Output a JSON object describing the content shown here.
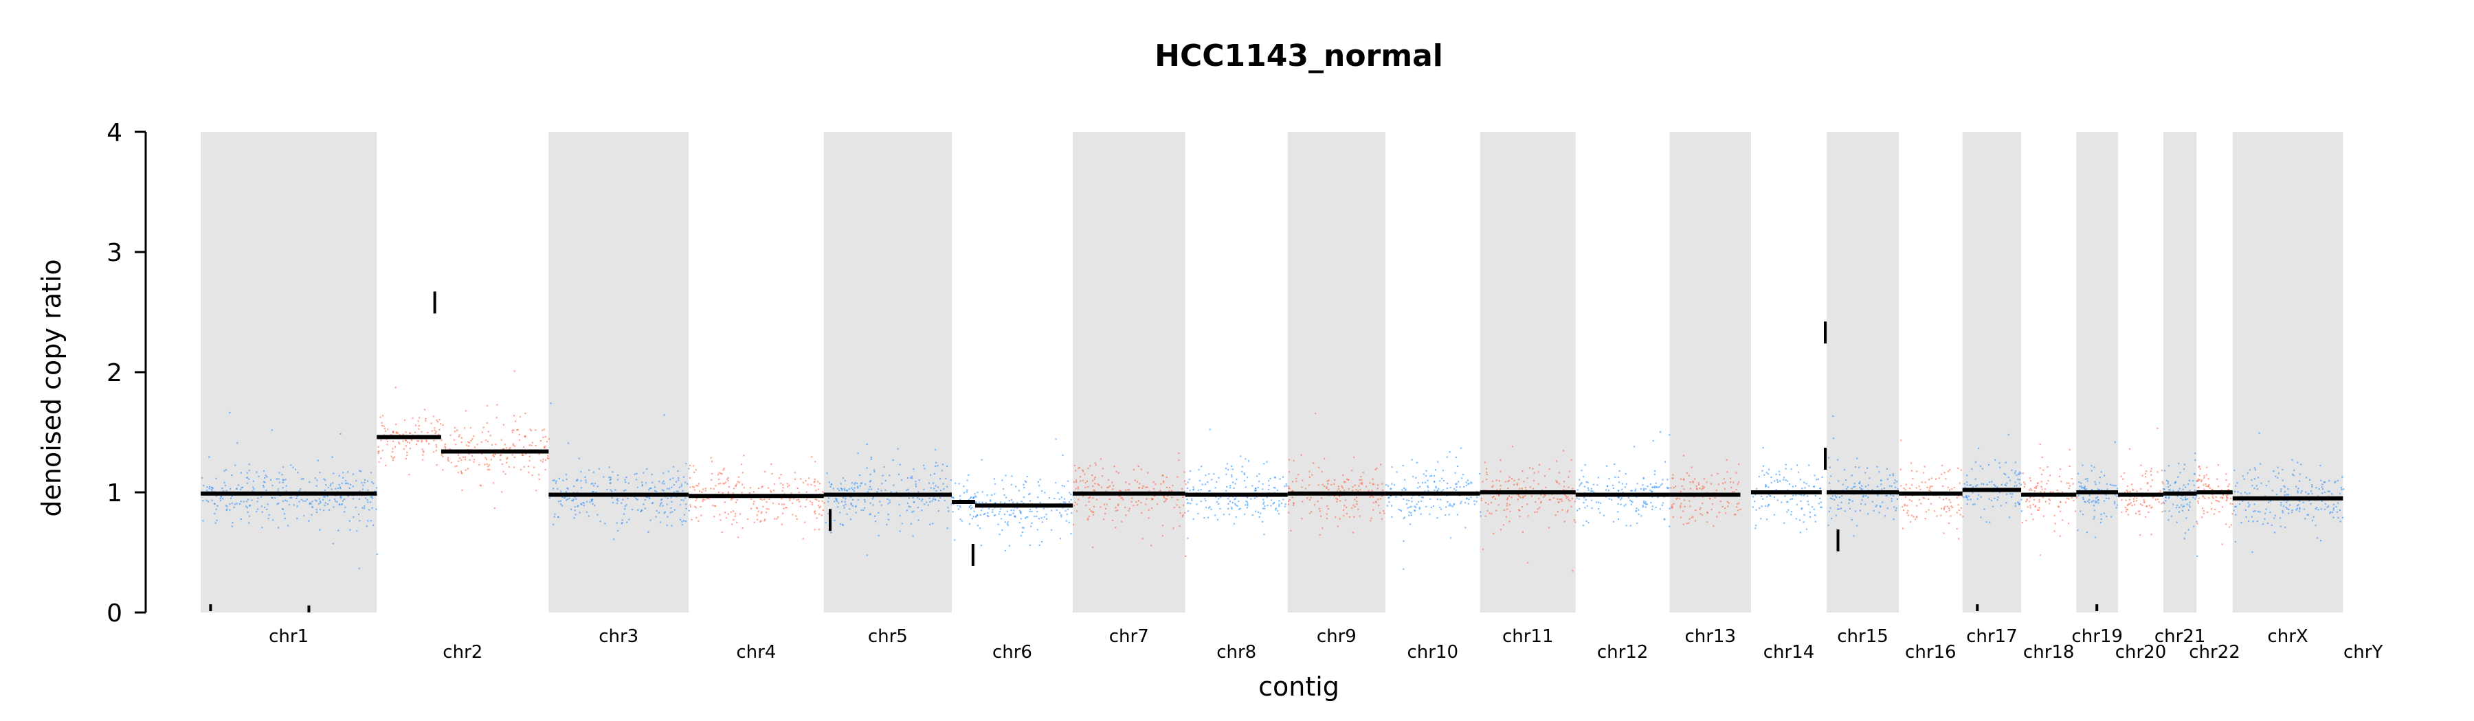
{
  "chart_data": {
    "type": "scatter",
    "title": "HCC1143_normal",
    "xlabel": "contig",
    "ylabel": "denoised copy ratio",
    "ylim": [
      0,
      4
    ],
    "yticks": [
      "0",
      "1",
      "2",
      "3",
      "4"
    ],
    "grid": false,
    "colors": {
      "point_a": "#1e88ff",
      "point_b": "#ff5a36",
      "band": "#e5e5e5",
      "segment": "#000000"
    },
    "contigs": [
      {
        "name": "chr1",
        "start": 0,
        "end": 249,
        "shaded": true,
        "color": "point_a"
      },
      {
        "name": "chr2",
        "start": 249,
        "end": 492,
        "shaded": false,
        "color": "point_b"
      },
      {
        "name": "chr3",
        "start": 492,
        "end": 690,
        "shaded": true,
        "color": "point_a"
      },
      {
        "name": "chr4",
        "start": 690,
        "end": 881,
        "shaded": false,
        "color": "point_b"
      },
      {
        "name": "chr5",
        "start": 881,
        "end": 1062,
        "shaded": true,
        "color": "point_a"
      },
      {
        "name": "chr6",
        "start": 1062,
        "end": 1233,
        "shaded": false,
        "color": "point_a"
      },
      {
        "name": "chr7",
        "start": 1233,
        "end": 1392,
        "shaded": true,
        "color": "point_b"
      },
      {
        "name": "chr8",
        "start": 1392,
        "end": 1537,
        "shaded": false,
        "color": "point_a"
      },
      {
        "name": "chr9",
        "start": 1537,
        "end": 1675,
        "shaded": true,
        "color": "point_b"
      },
      {
        "name": "chr10",
        "start": 1675,
        "end": 1809,
        "shaded": false,
        "color": "point_a"
      },
      {
        "name": "chr11",
        "start": 1809,
        "end": 1944,
        "shaded": true,
        "color": "point_b"
      },
      {
        "name": "chr12",
        "start": 1944,
        "end": 2077,
        "shaded": false,
        "color": "point_a"
      },
      {
        "name": "chr13",
        "start": 2077,
        "end": 2192,
        "shaded": true,
        "color": "point_b"
      },
      {
        "name": "chr14",
        "start": 2192,
        "end": 2299,
        "shaded": false,
        "color": "point_a"
      },
      {
        "name": "chr15",
        "start": 2299,
        "end": 2401,
        "shaded": true,
        "color": "point_a"
      },
      {
        "name": "chr16",
        "start": 2401,
        "end": 2491,
        "shaded": false,
        "color": "point_b"
      },
      {
        "name": "chr17",
        "start": 2491,
        "end": 2574,
        "shaded": true,
        "color": "point_a"
      },
      {
        "name": "chr18",
        "start": 2574,
        "end": 2652,
        "shaded": false,
        "color": "point_b"
      },
      {
        "name": "chr19",
        "start": 2652,
        "end": 2711,
        "shaded": true,
        "color": "point_a"
      },
      {
        "name": "chr20",
        "start": 2711,
        "end": 2775,
        "shaded": false,
        "color": "point_b"
      },
      {
        "name": "chr21",
        "start": 2775,
        "end": 2822,
        "shaded": true,
        "color": "point_a"
      },
      {
        "name": "chr22",
        "start": 2822,
        "end": 2873,
        "shaded": false,
        "color": "point_b"
      },
      {
        "name": "chrX",
        "start": 2873,
        "end": 3029,
        "shaded": true,
        "color": "point_a"
      },
      {
        "name": "chrY",
        "start": 3029,
        "end": 3086,
        "shaded": false,
        "color": "point_a"
      }
    ],
    "segments": [
      {
        "start": 0,
        "end": 249,
        "y": 0.99
      },
      {
        "start": 249,
        "end": 340,
        "y": 1.46
      },
      {
        "start": 340,
        "end": 492,
        "y": 1.34
      },
      {
        "start": 492,
        "end": 690,
        "y": 0.98
      },
      {
        "start": 690,
        "end": 881,
        "y": 0.97
      },
      {
        "start": 881,
        "end": 1062,
        "y": 0.98
      },
      {
        "start": 1062,
        "end": 1095,
        "y": 0.92
      },
      {
        "start": 1095,
        "end": 1233,
        "y": 0.89
      },
      {
        "start": 1233,
        "end": 1392,
        "y": 0.99
      },
      {
        "start": 1392,
        "end": 1537,
        "y": 0.98
      },
      {
        "start": 1537,
        "end": 1675,
        "y": 0.99
      },
      {
        "start": 1675,
        "end": 1809,
        "y": 0.99
      },
      {
        "start": 1809,
        "end": 1944,
        "y": 1.0
      },
      {
        "start": 1944,
        "end": 2077,
        "y": 0.98
      },
      {
        "start": 2077,
        "end": 2177,
        "y": 0.98
      },
      {
        "start": 2192,
        "end": 2292,
        "y": 1.0
      },
      {
        "start": 2299,
        "end": 2401,
        "y": 1.0
      },
      {
        "start": 2401,
        "end": 2491,
        "y": 0.99
      },
      {
        "start": 2491,
        "end": 2574,
        "y": 1.02
      },
      {
        "start": 2574,
        "end": 2652,
        "y": 0.98
      },
      {
        "start": 2652,
        "end": 2711,
        "y": 1.0
      },
      {
        "start": 2711,
        "end": 2775,
        "y": 0.98
      },
      {
        "start": 2775,
        "end": 2822,
        "y": 0.99
      },
      {
        "start": 2822,
        "end": 2873,
        "y": 1.0
      },
      {
        "start": 2873,
        "end": 3029,
        "y": 0.95
      }
    ],
    "outlier_markers": [
      {
        "x": 14,
        "y": 0.04
      },
      {
        "x": 153,
        "y": 0.03
      },
      {
        "x": 331,
        "y": 2.58
      },
      {
        "x": 890,
        "y": 0.77
      },
      {
        "x": 1092,
        "y": 0.48
      },
      {
        "x": 2297,
        "y": 2.33
      },
      {
        "x": 2297,
        "y": 1.28
      },
      {
        "x": 2315,
        "y": 0.6
      },
      {
        "x": 2512,
        "y": 0.04
      },
      {
        "x": 2681,
        "y": 0.04
      }
    ],
    "point_cloud": {
      "center": 1.0,
      "typical_spread": 0.12,
      "density_per_contig": 260
    }
  }
}
